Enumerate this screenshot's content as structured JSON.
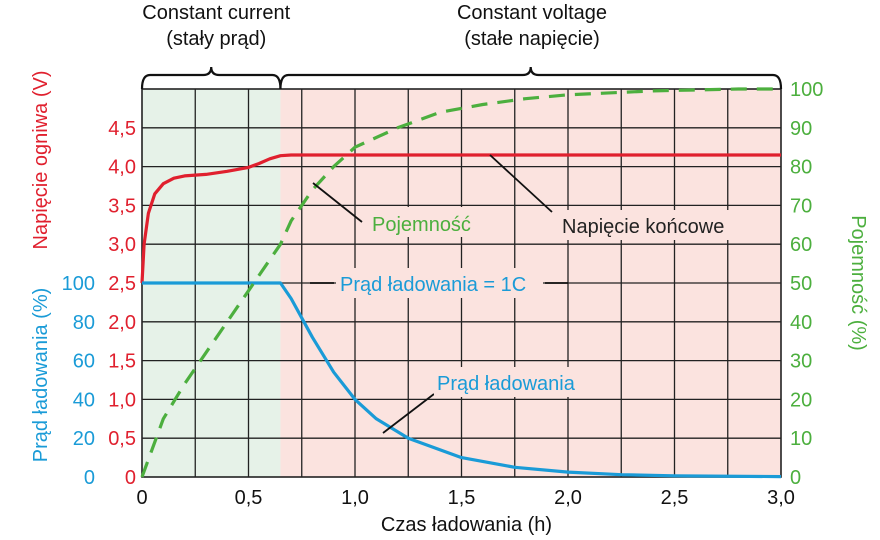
{
  "chart_data": {
    "type": "line",
    "xlabel": "Czas ładowania (h)",
    "xlim": [
      0,
      3.0
    ],
    "x_ticks": [
      "0",
      "0,5",
      "1,0",
      "1,5",
      "2,0",
      "2,5",
      "3,0"
    ],
    "left_axis_voltage": {
      "label": "Napięcie ogniwa (V)",
      "ticks": [
        "0",
        "0,5",
        "1,0",
        "1,5",
        "2,0",
        "2,5",
        "3,0",
        "3,5",
        "4,0",
        "4,5"
      ],
      "range": [
        0,
        5.0
      ]
    },
    "left_axis_current": {
      "label": "Prąd ładowania (%)",
      "ticks": [
        "0",
        "20",
        "40",
        "60",
        "80",
        "100"
      ],
      "range": [
        0,
        100
      ]
    },
    "right_axis": {
      "label": "Pojemność (%)",
      "ticks": [
        "0",
        "10",
        "20",
        "30",
        "40",
        "50",
        "60",
        "70",
        "80",
        "90",
        "100"
      ],
      "range": [
        0,
        100
      ]
    },
    "phases": [
      {
        "title": "Constant current",
        "subtitle": "(stały prąd)",
        "x_start": 0,
        "x_end": 0.65,
        "color": "#e6f2e8"
      },
      {
        "title": "Constant voltage",
        "subtitle": "(stałe napięcie)",
        "x_start": 0.65,
        "x_end": 3.0,
        "color": "#fbe3df"
      }
    ],
    "series": [
      {
        "name": "Napięcie końcowe",
        "axis": "voltage",
        "color": "#e0202e",
        "style": "solid",
        "x": [
          0,
          0.01,
          0.03,
          0.06,
          0.1,
          0.15,
          0.2,
          0.3,
          0.4,
          0.5,
          0.55,
          0.6,
          0.65,
          0.7,
          1.0,
          1.5,
          2.0,
          2.5,
          3.0
        ],
        "y": [
          2.5,
          3.0,
          3.4,
          3.65,
          3.78,
          3.85,
          3.88,
          3.9,
          3.94,
          3.99,
          4.04,
          4.1,
          4.14,
          4.15,
          4.15,
          4.15,
          4.15,
          4.15,
          4.15
        ]
      },
      {
        "name": "Prąd ładowania",
        "axis": "current",
        "color": "#1a9bd7",
        "style": "solid",
        "x": [
          0,
          0.65,
          0.7,
          0.8,
          0.9,
          1.0,
          1.1,
          1.25,
          1.5,
          1.75,
          2.0,
          2.25,
          2.5,
          3.0
        ],
        "y": [
          100,
          100,
          92,
          72,
          54,
          40,
          30,
          20,
          10,
          5,
          2.5,
          1.2,
          0.6,
          0.2
        ]
      },
      {
        "name": "Pojemność",
        "axis": "capacity",
        "color": "#4caf3e",
        "style": "dashed",
        "x": [
          0,
          0.1,
          0.2,
          0.3,
          0.4,
          0.5,
          0.6,
          0.65,
          0.7,
          0.8,
          0.9,
          1.0,
          1.2,
          1.4,
          1.6,
          1.8,
          2.0,
          2.4,
          2.8,
          3.0
        ],
        "y": [
          0,
          15,
          24,
          32,
          40,
          48,
          56,
          60,
          66,
          74,
          80,
          85,
          90,
          94,
          96,
          97.5,
          98.5,
          99.5,
          100,
          100
        ]
      }
    ],
    "annotations": [
      {
        "text": "Pojemność",
        "color": "#4caf3e",
        "points_to": "Pojemność"
      },
      {
        "text": "Napięcie końcowe",
        "color": "#222222",
        "points_to": "Napięcie końcowe"
      },
      {
        "text": "Prąd ładowania = 1C",
        "color": "#1a9bd7",
        "points_to": "Prąd ładowania"
      },
      {
        "text": "Prąd ładowania",
        "color": "#1a9bd7",
        "points_to": "Prąd ładowania"
      }
    ],
    "grid": true
  }
}
